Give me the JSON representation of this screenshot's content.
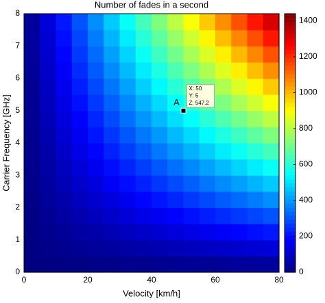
{
  "chart_data": {
    "type": "heatmap",
    "title": "Number of fades in a second",
    "x_label": "Velocity [km/h]",
    "y_label": "Carrier Frequency [GHz]",
    "x_edges": [
      0,
      5,
      10,
      15,
      20,
      25,
      30,
      35,
      40,
      45,
      50,
      55,
      60,
      65,
      70,
      75,
      80
    ],
    "y_edges": [
      0,
      0.5,
      1,
      1.5,
      2,
      2.5,
      3,
      3.5,
      4,
      4.5,
      5,
      5.5,
      6,
      6.5,
      7,
      7.5,
      8
    ],
    "z": [
      [
        1,
        4,
        7,
        10,
        12,
        15,
        18,
        21,
        23,
        26,
        29,
        31,
        34,
        37,
        40,
        42
      ],
      [
        4,
        12,
        21,
        29,
        37,
        45,
        53,
        62,
        70,
        78,
        86,
        94,
        103,
        111,
        119,
        127
      ],
      [
        7,
        21,
        34,
        48,
        62,
        75,
        89,
        103,
        116,
        130,
        144,
        157,
        171,
        185,
        198,
        212
      ],
      [
        10,
        29,
        48,
        67,
        86,
        105,
        124,
        144,
        163,
        182,
        201,
        220,
        239,
        259,
        278,
        297
      ],
      [
        12,
        37,
        62,
        86,
        111,
        135,
        160,
        185,
        209,
        234,
        259,
        283,
        308,
        332,
        357,
        382
      ],
      [
        15,
        45,
        75,
        105,
        135,
        166,
        196,
        226,
        256,
        286,
        316,
        346,
        376,
        406,
        436,
        466
      ],
      [
        18,
        53,
        89,
        124,
        160,
        196,
        231,
        267,
        302,
        338,
        373,
        409,
        445,
        480,
        516,
        551
      ],
      [
        21,
        62,
        103,
        144,
        185,
        226,
        267,
        308,
        349,
        390,
        431,
        472,
        513,
        554,
        595,
        636
      ],
      [
        23,
        70,
        116,
        163,
        209,
        256,
        302,
        349,
        395,
        442,
        488,
        535,
        581,
        628,
        674,
        721
      ],
      [
        26,
        78,
        130,
        182,
        234,
        286,
        338,
        390,
        442,
        494,
        546,
        598,
        650,
        702,
        754,
        806
      ],
      [
        29,
        86,
        144,
        201,
        259,
        316,
        373,
        431,
        488,
        546,
        603,
        661,
        718,
        776,
        833,
        891
      ],
      [
        31,
        94,
        157,
        220,
        283,
        346,
        409,
        472,
        535,
        598,
        661,
        724,
        787,
        850,
        912,
        975
      ],
      [
        34,
        103,
        171,
        239,
        308,
        376,
        445,
        513,
        581,
        650,
        718,
        787,
        855,
        923,
        992,
        1060
      ],
      [
        37,
        111,
        185,
        259,
        332,
        406,
        480,
        554,
        628,
        702,
        776,
        850,
        923,
        997,
        1071,
        1145
      ],
      [
        40,
        119,
        198,
        278,
        357,
        436,
        516,
        595,
        674,
        754,
        833,
        912,
        992,
        1071,
        1150,
        1230
      ],
      [
        42,
        127,
        212,
        297,
        382,
        466,
        551,
        636,
        721,
        806,
        891,
        975,
        1060,
        1145,
        1230,
        1315
      ]
    ],
    "colormap": "jet",
    "xlim": [
      0,
      80
    ],
    "xticks": [
      0,
      20,
      40,
      60,
      80
    ],
    "ylim": [
      0,
      8
    ],
    "yticks": [
      0,
      1,
      2,
      3,
      4,
      5,
      6,
      7,
      8
    ],
    "clim": [
      0,
      1440
    ],
    "cticks": [
      0,
      200,
      400,
      600,
      800,
      1000,
      1200,
      1400
    ],
    "annotation": {
      "label": "A",
      "x": 50,
      "y": 5,
      "lines": [
        "X: 50",
        "Y: 5",
        "Z: 547.2"
      ]
    }
  }
}
